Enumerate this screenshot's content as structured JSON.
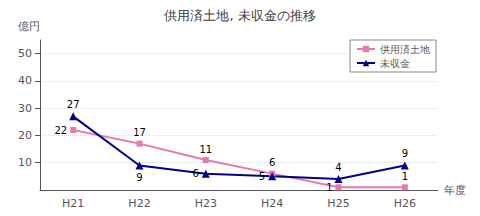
{
  "chart_data": {
    "type": "line",
    "title": "供用済土地, 未収金の推移",
    "ylabel": "億円",
    "xlabel": "年度",
    "categories": [
      "H21",
      "H22",
      "H23",
      "H24",
      "H25",
      "H26"
    ],
    "series": [
      {
        "name": "供用済土地",
        "color": "#e87aaa",
        "marker": "square",
        "values": [
          22,
          17,
          11,
          6,
          1,
          1
        ]
      },
      {
        "name": "未収金",
        "color": "#00008b",
        "marker": "triangle",
        "values": [
          27,
          9,
          6,
          5,
          4,
          9
        ]
      }
    ],
    "ylim": [
      0,
      55
    ],
    "yticks": [
      10,
      20,
      30,
      40,
      50
    ],
    "grid": true,
    "legend": "upper right",
    "data_labels": true
  }
}
